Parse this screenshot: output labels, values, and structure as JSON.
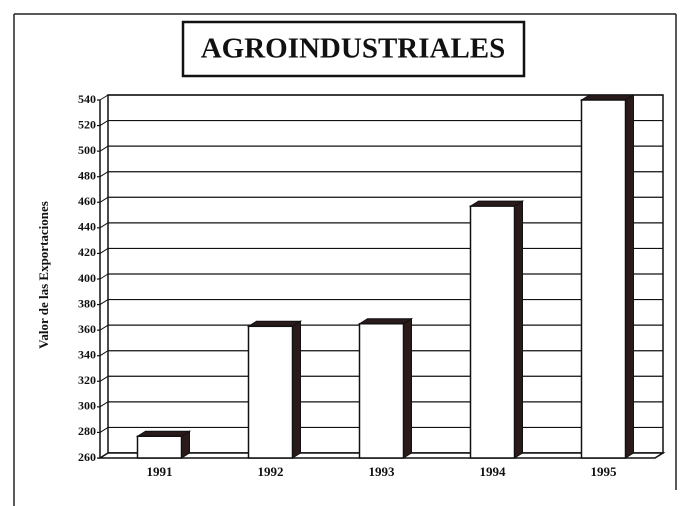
{
  "chart_data": {
    "type": "bar3d",
    "title": "AGROINDUSTRIALES",
    "y_label": "Valor de las Exportaciones",
    "categories": [
      "1991",
      "1992",
      "1993",
      "1994",
      "1995"
    ],
    "values": [
      277,
      363,
      365,
      457,
      540
    ],
    "ylim": [
      260,
      540
    ],
    "yticks": [
      260,
      280,
      300,
      320,
      340,
      360,
      380,
      400,
      420,
      440,
      460,
      480,
      500,
      520,
      540
    ],
    "grid": true,
    "color": "#ffffff",
    "side_color": "#2a1a1a"
  }
}
